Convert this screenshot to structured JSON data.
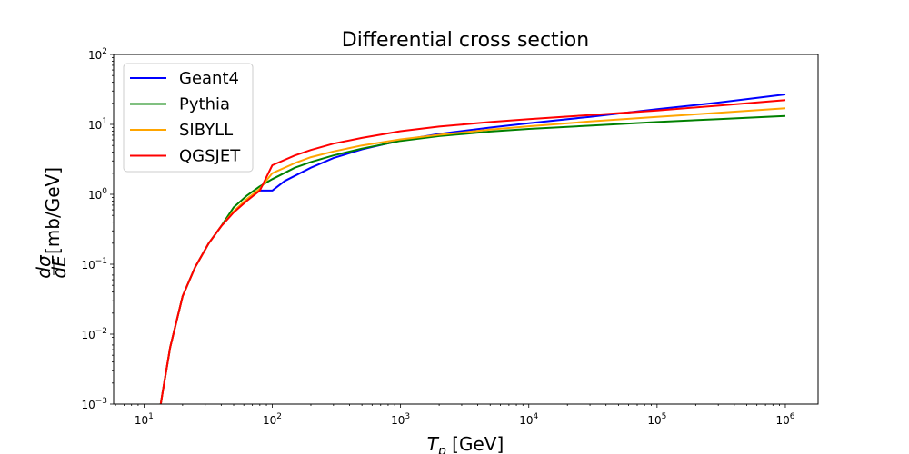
{
  "chart_data": {
    "type": "line",
    "title": "Differential cross section",
    "xlabel": "T_p [GeV]",
    "ylabel": "dσ/dE [mb/GeV]",
    "xscale": "log",
    "yscale": "log",
    "xlim": [
      5.8,
      1800000
    ],
    "ylim": [
      0.001,
      100
    ],
    "x_ticks": [
      {
        "value": 10,
        "base": "10",
        "exp": "1"
      },
      {
        "value": 100,
        "base": "10",
        "exp": "2"
      },
      {
        "value": 1000,
        "base": "10",
        "exp": "3"
      },
      {
        "value": 10000,
        "base": "10",
        "exp": "4"
      },
      {
        "value": 100000,
        "base": "10",
        "exp": "5"
      },
      {
        "value": 1000000,
        "base": "10",
        "exp": "6"
      }
    ],
    "y_ticks": [
      {
        "value": 0.001,
        "base": "10",
        "exp": "−3"
      },
      {
        "value": 0.01,
        "base": "10",
        "exp": "−2"
      },
      {
        "value": 0.1,
        "base": "10",
        "exp": "−1"
      },
      {
        "value": 1,
        "base": "10",
        "exp": "0"
      },
      {
        "value": 10,
        "base": "10",
        "exp": "1"
      },
      {
        "value": 100,
        "base": "10",
        "exp": "2"
      }
    ],
    "grid": false,
    "legend_position": "top-left",
    "series": [
      {
        "name": "Geant4",
        "color": "#0000ff",
        "points": [
          [
            13.5,
            0.001
          ],
          [
            14,
            0.0015
          ],
          [
            16,
            0.0065
          ],
          [
            20,
            0.035
          ],
          [
            25,
            0.09
          ],
          [
            32,
            0.2
          ],
          [
            40,
            0.35
          ],
          [
            50,
            0.56
          ],
          [
            63,
            0.82
          ],
          [
            80,
            1.13
          ],
          [
            100,
            1.13
          ],
          [
            125,
            1.55
          ],
          [
            200,
            2.4
          ],
          [
            300,
            3.3
          ],
          [
            500,
            4.4
          ],
          [
            1000,
            5.9
          ],
          [
            2000,
            7.3
          ],
          [
            5000,
            9.0
          ],
          [
            10000,
            10.4
          ],
          [
            30000,
            12.8
          ],
          [
            100000,
            16.5
          ],
          [
            300000,
            20.5
          ],
          [
            1000000,
            26.8
          ]
        ]
      },
      {
        "name": "Pythia",
        "color": "#008000",
        "points": [
          [
            13.5,
            0.001
          ],
          [
            14,
            0.0015
          ],
          [
            16,
            0.0065
          ],
          [
            20,
            0.035
          ],
          [
            25,
            0.09
          ],
          [
            32,
            0.2
          ],
          [
            40,
            0.35
          ],
          [
            50,
            0.65
          ],
          [
            63,
            0.95
          ],
          [
            80,
            1.3
          ],
          [
            100,
            1.65
          ],
          [
            150,
            2.4
          ],
          [
            200,
            2.9
          ],
          [
            300,
            3.6
          ],
          [
            500,
            4.5
          ],
          [
            1000,
            5.8
          ],
          [
            2000,
            6.8
          ],
          [
            5000,
            7.9
          ],
          [
            10000,
            8.6
          ],
          [
            30000,
            9.6
          ],
          [
            100000,
            10.8
          ],
          [
            300000,
            11.9
          ],
          [
            1000000,
            13.2
          ]
        ]
      },
      {
        "name": "SIBYLL",
        "color": "#ffa500",
        "points": [
          [
            13.5,
            0.001
          ],
          [
            14,
            0.0015
          ],
          [
            16,
            0.0065
          ],
          [
            20,
            0.035
          ],
          [
            25,
            0.09
          ],
          [
            32,
            0.2
          ],
          [
            40,
            0.35
          ],
          [
            50,
            0.57
          ],
          [
            63,
            0.85
          ],
          [
            80,
            1.2
          ],
          [
            100,
            2.0
          ],
          [
            150,
            2.8
          ],
          [
            200,
            3.4
          ],
          [
            300,
            4.1
          ],
          [
            500,
            5.0
          ],
          [
            1000,
            6.1
          ],
          [
            2000,
            7.1
          ],
          [
            5000,
            8.4
          ],
          [
            10000,
            9.4
          ],
          [
            30000,
            11.0
          ],
          [
            100000,
            12.8
          ],
          [
            300000,
            14.6
          ],
          [
            1000000,
            17.0
          ]
        ]
      },
      {
        "name": "QGSJET",
        "color": "#ff0000",
        "points": [
          [
            13.5,
            0.001
          ],
          [
            14,
            0.0015
          ],
          [
            16,
            0.0065
          ],
          [
            20,
            0.035
          ],
          [
            25,
            0.09
          ],
          [
            32,
            0.2
          ],
          [
            40,
            0.35
          ],
          [
            50,
            0.55
          ],
          [
            63,
            0.8
          ],
          [
            80,
            1.13
          ],
          [
            100,
            2.6
          ],
          [
            150,
            3.6
          ],
          [
            200,
            4.3
          ],
          [
            300,
            5.3
          ],
          [
            500,
            6.4
          ],
          [
            1000,
            8.0
          ],
          [
            2000,
            9.3
          ],
          [
            5000,
            10.8
          ],
          [
            10000,
            11.9
          ],
          [
            30000,
            13.6
          ],
          [
            100000,
            15.8
          ],
          [
            300000,
            18.5
          ],
          [
            1000000,
            22.2
          ]
        ]
      }
    ]
  }
}
